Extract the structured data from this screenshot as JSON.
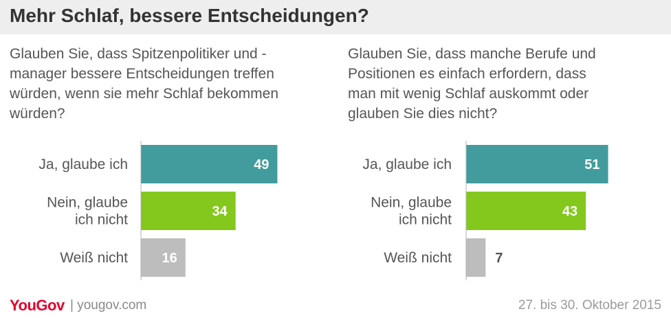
{
  "header": {
    "title": "Mehr Schlaf, bessere Entscheidungen?"
  },
  "colors": {
    "ja": "#429c9d",
    "nein": "#84c71d",
    "weiss": "#bdbdbd",
    "header_bg": "#eeeeee",
    "brand": "#e4002b"
  },
  "chart_data": [
    {
      "type": "bar",
      "orientation": "horizontal",
      "title": "Glauben Sie, dass Spitzenpolitiker und -manager bessere Entscheidungen treffen würden, wenn sie mehr Schlaf bekommen würden?",
      "title_lines": [
        "Glauben Sie, dass Spitzenpolitiker und -",
        "manager bessere Entscheidungen treffen",
        "würden, wenn sie mehr Schlaf bekommen",
        "würden?"
      ],
      "categories": [
        [
          "Ja, glaube ich"
        ],
        [
          "Nein, glaube",
          "ich nicht"
        ],
        [
          "Weiß nicht"
        ]
      ],
      "values": [
        49,
        34,
        16
      ],
      "value_labels": [
        "49",
        "34",
        "16"
      ],
      "xlim": [
        0,
        100
      ]
    },
    {
      "type": "bar",
      "orientation": "horizontal",
      "title": "Glauben Sie, dass manche Berufe und Positionen es einfach erfordern, dass man mit wenig Schlaf auskommt oder glauben Sie dies nicht?",
      "title_lines": [
        "Glauben Sie, dass manche Berufe und",
        "Positionen es einfach erfordern, dass",
        "man mit wenig Schlaf auskommt oder",
        "glauben Sie dies nicht?"
      ],
      "categories": [
        [
          "Ja, glaube ich"
        ],
        [
          "Nein, glaube",
          "ich nicht"
        ],
        [
          "Weiß nicht"
        ]
      ],
      "values": [
        51,
        43,
        7
      ],
      "value_labels": [
        "51",
        "43",
        "7"
      ],
      "xlim": [
        0,
        100
      ]
    }
  ],
  "footer": {
    "logo": "YouGov",
    "site": "| yougov.com",
    "date": "27. bis 30. Oktober 2015"
  }
}
